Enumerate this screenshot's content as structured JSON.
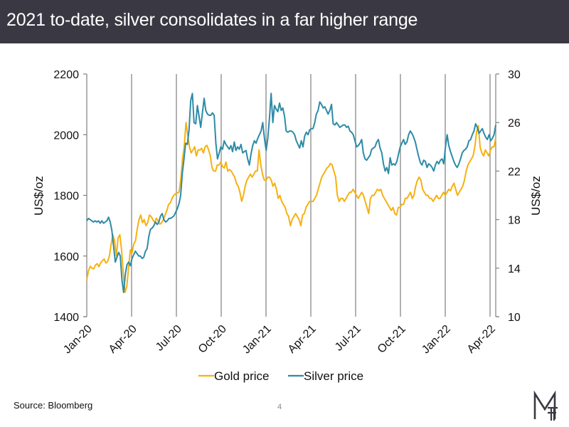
{
  "header": {
    "title": "2021 to-date, silver consolidates in a far higher range"
  },
  "footer": {
    "source": "Source: Bloomberg",
    "page_number": "4",
    "logo": "MF-monogram-icon"
  },
  "colors": {
    "header_bg": "#3a3842",
    "gold": "#f5b111",
    "silver": "#2e8ba6",
    "grid": "#7f7f7f"
  },
  "chart_data": {
    "type": "line",
    "title": "2021 to-date, silver consolidates in a far higher range",
    "xlabel": "",
    "ylabel": "US$/oz",
    "y2label": "US$/oz",
    "ylim": [
      1400,
      2200
    ],
    "y2lim": [
      10,
      30
    ],
    "yticks": [
      "1400",
      "1600",
      "1800",
      "2000",
      "2200"
    ],
    "y2ticks": [
      "10",
      "14",
      "18",
      "22",
      "26",
      "30"
    ],
    "xticks": [
      "Jan-20",
      "Apr-20",
      "Jul-20",
      "Oct-20",
      "Jan-21",
      "Apr-21",
      "Jul-21",
      "Oct-21",
      "Jan-22",
      "Apr-22"
    ],
    "xrange": [
      "2020-01-01",
      "2022-04-18"
    ],
    "grid": "vertical at quarter starts",
    "legend": {
      "placement": "bottom",
      "entries": [
        "Gold price",
        "Silver price"
      ]
    },
    "series": [
      {
        "name": "Gold price",
        "axis": "left",
        "values": [
          1521,
          1552,
          1566,
          1560,
          1558,
          1570,
          1575,
          1565,
          1578,
          1585,
          1590,
          1577,
          1582,
          1600,
          1640,
          1670,
          1650,
          1600,
          1660,
          1670,
          1620,
          1540,
          1480,
          1500,
          1560,
          1620,
          1610,
          1640,
          1650,
          1690,
          1720,
          1735,
          1710,
          1720,
          1700,
          1710,
          1735,
          1730,
          1720,
          1710,
          1725,
          1715,
          1705,
          1710,
          1720,
          1735,
          1750,
          1770,
          1775,
          1790,
          1800,
          1805,
          1808,
          1810,
          1850,
          1920,
          1960,
          2040,
          2000,
          1960,
          1940,
          1950,
          1960,
          1930,
          1950,
          1950,
          1955,
          1940,
          1960,
          1965,
          1950,
          1930,
          1890,
          1880,
          1880,
          1900,
          1900,
          1910,
          1895,
          1890,
          1910,
          1880,
          1885,
          1880,
          1870,
          1860,
          1840,
          1830,
          1810,
          1780,
          1800,
          1830,
          1850,
          1860,
          1870,
          1860,
          1870,
          1880,
          1880,
          1950,
          1900,
          1870,
          1850,
          1850,
          1860,
          1860,
          1850,
          1830,
          1840,
          1820,
          1790,
          1800,
          1780,
          1770,
          1760,
          1740,
          1730,
          1700,
          1720,
          1730,
          1740,
          1730,
          1720,
          1700,
          1735,
          1740,
          1760,
          1770,
          1780,
          1780,
          1780,
          1790,
          1800,
          1820,
          1840,
          1860,
          1870,
          1880,
          1890,
          1895,
          1905,
          1900,
          1880,
          1860,
          1800,
          1780,
          1790,
          1790,
          1780,
          1790,
          1800,
          1810,
          1810,
          1820,
          1810,
          1800,
          1790,
          1800,
          1810,
          1800,
          1780,
          1760,
          1740,
          1790,
          1800,
          1800,
          1810,
          1820,
          1815,
          1820,
          1800,
          1790,
          1780,
          1770,
          1760,
          1750,
          1760,
          1740,
          1735,
          1760,
          1760,
          1770,
          1770,
          1790,
          1790,
          1800,
          1810,
          1790,
          1800,
          1830,
          1850,
          1860,
          1850,
          1820,
          1810,
          1800,
          1800,
          1790,
          1790,
          1780,
          1790,
          1800,
          1790,
          1790,
          1800,
          1810,
          1800,
          1810,
          1820,
          1815,
          1830,
          1840,
          1820,
          1800,
          1810,
          1820,
          1830,
          1850,
          1880,
          1900,
          1910,
          1920,
          1930,
          1960,
          2010,
          2030,
          1960,
          1940,
          1930,
          1950,
          1940,
          1930,
          1950,
          1960,
          1960,
          1990
        ]
      },
      {
        "name": "Silver price",
        "axis": "right",
        "values": [
          17.9,
          18.1,
          18.0,
          17.9,
          17.8,
          17.9,
          17.8,
          17.9,
          17.7,
          17.9,
          17.7,
          17.8,
          17.9,
          18.2,
          17.8,
          17.1,
          15.8,
          14.5,
          14.9,
          15.3,
          15.0,
          13.0,
          12.0,
          13.5,
          14.3,
          14.5,
          14.2,
          14.8,
          15.1,
          15.4,
          15.2,
          15.0,
          15.0,
          14.8,
          14.9,
          15.4,
          15.6,
          16.6,
          17.2,
          17.3,
          17.5,
          17.8,
          17.6,
          17.8,
          18.3,
          18.5,
          18.0,
          17.8,
          17.9,
          18.1,
          18.1,
          18.2,
          18.3,
          18.6,
          18.9,
          19.3,
          20.0,
          21.8,
          23.0,
          24.3,
          24.2,
          25.4,
          27.8,
          28.4,
          26.0,
          25.9,
          27.4,
          26.5,
          25.6,
          26.8,
          28.0,
          27.0,
          26.7,
          26.6,
          26.6,
          26.8,
          26.6,
          24.3,
          23.0,
          23.5,
          24.0,
          23.8,
          24.5,
          24.2,
          24.0,
          23.8,
          24.1,
          23.6,
          24.4,
          23.7,
          24.0,
          23.8,
          24.2,
          23.5,
          23.6,
          23.7,
          23.0,
          22.5,
          23.4,
          24.1,
          24.5,
          24.3,
          24.7,
          25.0,
          25.3,
          26.0,
          24.7,
          23.7,
          24.7,
          26.4,
          28.4,
          26.0,
          27.4,
          27.1,
          26.9,
          27.6,
          27.0,
          27.2,
          26.5,
          25.3,
          25.2,
          25.3,
          25.3,
          25.2,
          25.0,
          24.5,
          24.2,
          23.9,
          24.5,
          24.0,
          24.9,
          25.2,
          25.0,
          25.4,
          25.5,
          25.5,
          26.0,
          26.7,
          27.0,
          27.7,
          27.5,
          27.2,
          27.3,
          27.0,
          26.7,
          27.0,
          27.5,
          25.9,
          25.8,
          26.0,
          25.8,
          25.6,
          25.7,
          25.8,
          25.8,
          25.6,
          25.7,
          25.3,
          25.2,
          25.0,
          24.5,
          24.0,
          24.1,
          24.3,
          24.6,
          23.5,
          23.0,
          22.9,
          23.1,
          23.3,
          23.8,
          23.9,
          24.0,
          24.4,
          24.6,
          23.9,
          23.5,
          22.6,
          22.0,
          22.3,
          21.8,
          23.1,
          22.5,
          22.6,
          22.5,
          22.8,
          23.4,
          24.0,
          24.3,
          24.6,
          24.2,
          24.4,
          25.0,
          25.3,
          25.1,
          24.8,
          24.4,
          23.8,
          23.2,
          22.7,
          22.5,
          22.9,
          22.8,
          22.3,
          22.6,
          22.5,
          22.3,
          22.0,
          22.5,
          22.8,
          22.6,
          22.9,
          23.0,
          22.6,
          24.0,
          25.0,
          24.1,
          23.6,
          23.2,
          22.8,
          22.5,
          22.3,
          22.6,
          23.0,
          23.5,
          23.7,
          23.8,
          24.0,
          24.5,
          24.6,
          25.0,
          25.3,
          25.9,
          25.6,
          25.1,
          25.3,
          25.5,
          25.1,
          24.8,
          24.6,
          25.0,
          24.5,
          24.7,
          25.0,
          25.8
        ]
      }
    ]
  }
}
